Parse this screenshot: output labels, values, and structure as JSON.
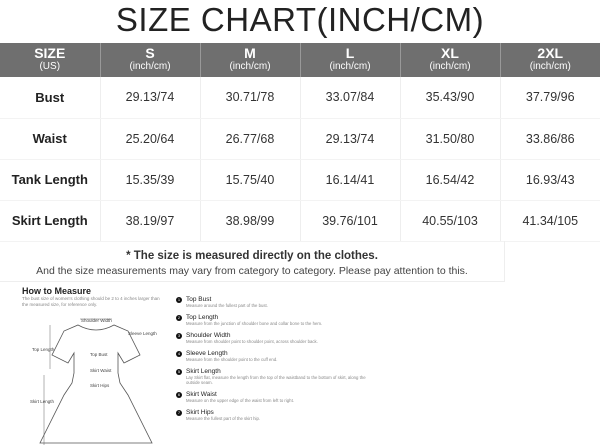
{
  "title": "SIZE CHART(INCH/CM)",
  "header": [
    {
      "size": "SIZE",
      "unit": "(US)"
    },
    {
      "size": "S",
      "unit": "(inch/cm)"
    },
    {
      "size": "M",
      "unit": "(inch/cm)"
    },
    {
      "size": "L",
      "unit": "(inch/cm)"
    },
    {
      "size": "XL",
      "unit": "(inch/cm)"
    },
    {
      "size": "2XL",
      "unit": "(inch/cm)"
    }
  ],
  "rows": [
    {
      "label": "Bust",
      "values": [
        "29.13/74",
        "30.71/78",
        "33.07/84",
        "35.43/90",
        "37.79/96"
      ]
    },
    {
      "label": "Waist",
      "values": [
        "25.20/64",
        "26.77/68",
        "29.13/74",
        "31.50/80",
        "33.86/86"
      ]
    },
    {
      "label": "Tank Length",
      "values": [
        "15.35/39",
        "15.75/40",
        "16.14/41",
        "16.54/42",
        "16.93/43"
      ]
    },
    {
      "label": "Skirt Length",
      "values": [
        "38.19/97",
        "38.98/99",
        "39.76/101",
        "40.55/103",
        "41.34/105"
      ]
    }
  ],
  "note": {
    "line1": "* The size is measured directly on the clothes.",
    "line2": "And the size measurements may vary from category to category. Please pay attention to this."
  },
  "how": {
    "title": "How to Measure",
    "desc": "The bust size of women's clothing should be 2 to 4 inches larger than the measured size, for reference only.",
    "diagram_labels": {
      "shoulder": "Shoulder Width",
      "sleeve": "Sleeve Length",
      "top_length": "Top Length",
      "top_bust": "Top Bust",
      "skirt_waist": "Skirt Waist",
      "skirt_hips": "Skirt Hips",
      "skirt_length": "Skirt Length"
    }
  },
  "items": [
    {
      "n": "1",
      "name": "Top Bust",
      "desc": "Measure around the fullest part of the bust."
    },
    {
      "n": "2",
      "name": "Top Length",
      "desc": "Measure from the junction of shoulder bone and collar bone to the hem."
    },
    {
      "n": "3",
      "name": "Shoulder Width",
      "desc": "Measure from shoulder point to shoulder point, across shoulder back."
    },
    {
      "n": "4",
      "name": "Sleeve Length",
      "desc": "Measure from the shoulder point to the cuff end."
    },
    {
      "n": "5",
      "name": "Skirt Length",
      "desc": "Lay Skirt flat, measure the length from the top of the waistband to the bottom of skirt, along the outside seam."
    },
    {
      "n": "6",
      "name": "Skirt Waist",
      "desc": "Measure on the upper edge of the waist from left to right."
    },
    {
      "n": "7",
      "name": "Skirt Hips",
      "desc": "Measure the fullest part of the skirt hip."
    }
  ]
}
